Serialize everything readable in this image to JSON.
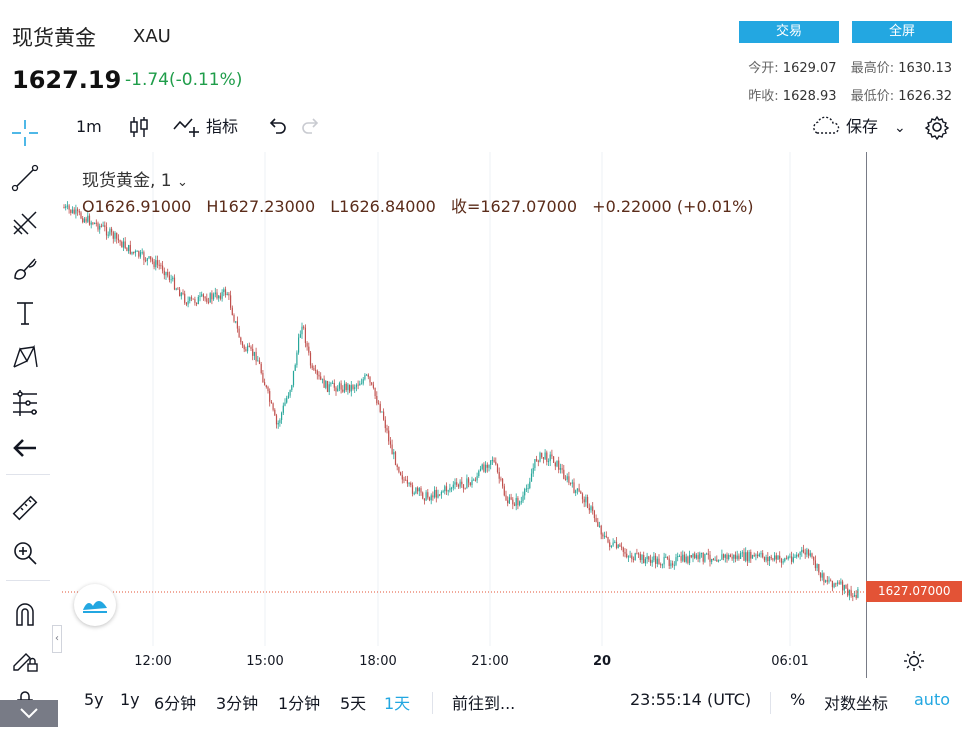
{
  "header": {
    "title": "现货黄金",
    "symbol": "XAU",
    "price": "1627.19",
    "change": "-1.74(-0.11%)",
    "trade_btn": "交易",
    "fullscreen_btn": "全屏",
    "open_label": "今开:",
    "open_value": "1629.07",
    "high_label": "最高价:",
    "high_value": "1630.13",
    "prev_close_label": "昨收:",
    "prev_close_value": "1628.93",
    "low_label": "最低价:",
    "low_value": "1626.32"
  },
  "toolbar": {
    "interval": "1m",
    "indicators": "指标",
    "save": "保存"
  },
  "legend": {
    "title": "现货黄金, 1",
    "open": "O1626.91000",
    "high": "H1627.23000",
    "low": "L1626.84000",
    "close": "收=1627.07000",
    "change": "+0.22000 (+0.01%)"
  },
  "price_tag": "1627.07000",
  "time_axis": [
    "12:00",
    "15:00",
    "18:00",
    "21:00",
    "20",
    "06:01"
  ],
  "bottom": {
    "ranges": [
      "5y",
      "1y",
      "6分钟",
      "3分钟",
      "1分钟",
      "5天",
      "1天"
    ],
    "goto": "前往到...",
    "clock": "23:55:14 (UTC)",
    "percent": "%",
    "log": "对数坐标",
    "auto": "auto"
  },
  "colors": {
    "accent": "#23a7e1",
    "up": "#1f9d4a",
    "candle_up": "#26a69a",
    "candle_down": "#c0504d",
    "price_tag": "#e35336"
  }
}
